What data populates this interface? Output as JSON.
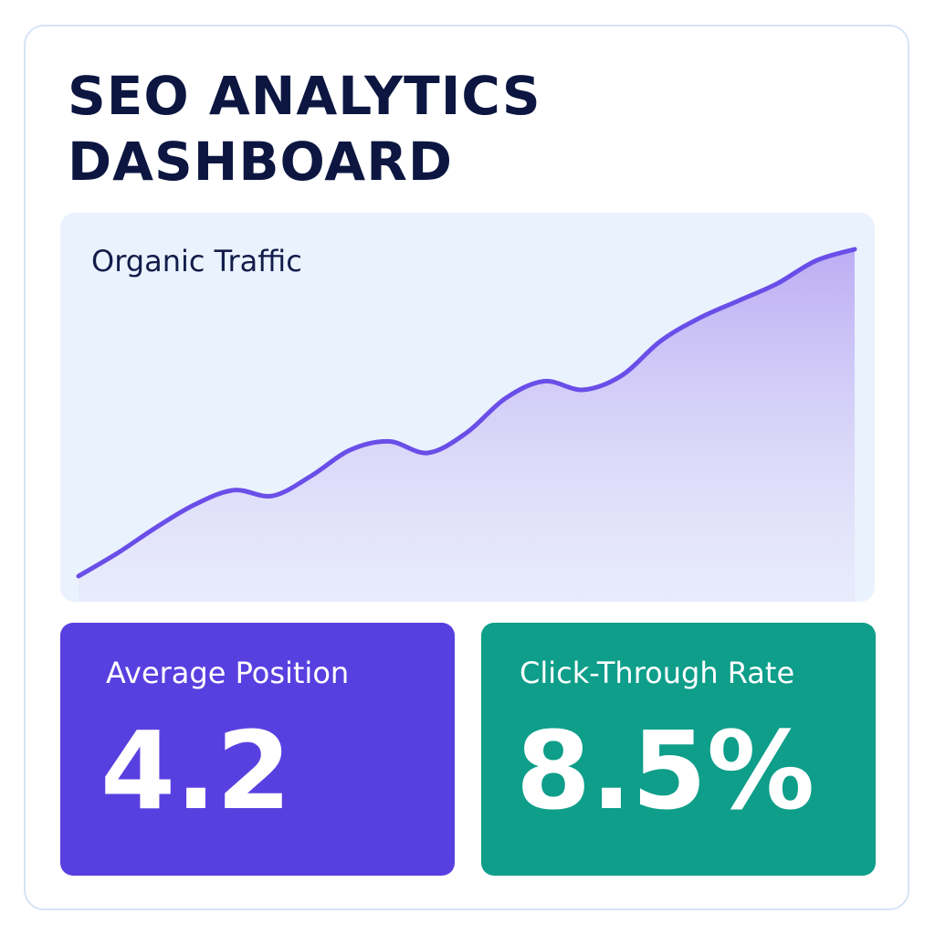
{
  "dashboard": {
    "title_line1": "SEO ANALYTICS",
    "title_line2": "DASHBOARD"
  },
  "traffic_chart": {
    "title": "Organic Traffic",
    "line_color": "#6a4ee8",
    "fill_color": "#b9a9f3"
  },
  "chart_data": {
    "type": "area",
    "title": "Organic Traffic",
    "x": [
      0,
      1,
      2,
      3,
      4,
      5,
      6,
      7,
      8,
      9,
      10,
      11,
      12,
      13,
      14,
      15,
      16,
      17,
      18,
      19,
      20
    ],
    "values": [
      0,
      8,
      17,
      25,
      30,
      28,
      35,
      44,
      47,
      43,
      50,
      62,
      68,
      65,
      70,
      82,
      90,
      96,
      102,
      110,
      114
    ],
    "ylim": [
      0,
      114
    ],
    "xlabel": "",
    "ylabel": "",
    "grid": false
  },
  "stats": {
    "avg_position": {
      "label": "Average Position",
      "value": "4.2",
      "color": "#5840e0"
    },
    "ctr": {
      "label": "Click-Through Rate",
      "value": "8.5%",
      "color": "#0e9e8a"
    }
  }
}
